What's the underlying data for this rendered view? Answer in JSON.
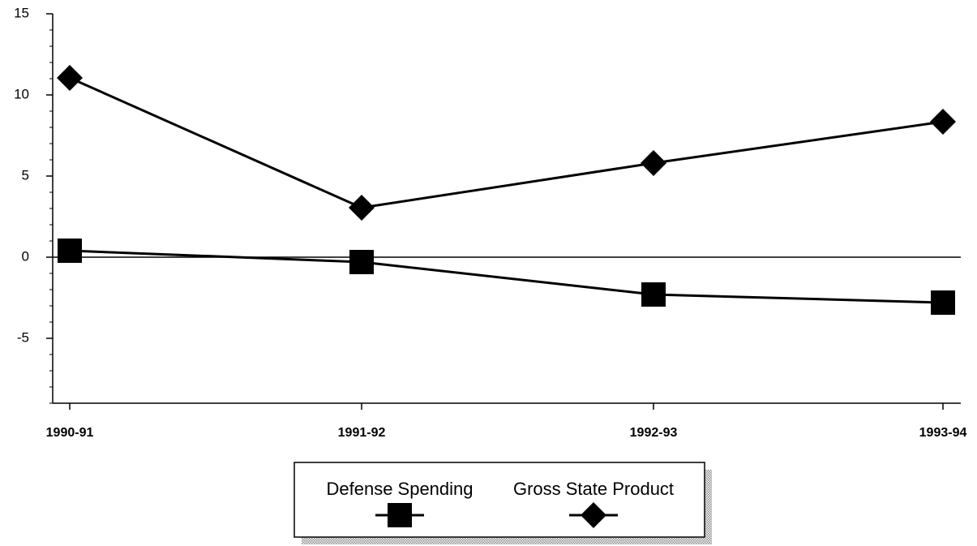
{
  "chart_data": {
    "type": "line",
    "categories": [
      "1990-91",
      "1991-92",
      "1992-93",
      "1993-94"
    ],
    "series": [
      {
        "name": "Defense Spending",
        "color": "#000000",
        "marker": "square",
        "values": [
          0.4,
          -0.3,
          -2.3,
          -2.8
        ]
      },
      {
        "name": "Gross State Product",
        "color": "#000000",
        "marker": "diamond",
        "values": [
          11.05,
          3.05,
          5.8,
          8.35
        ]
      }
    ],
    "ylim": [
      -9,
      15
    ],
    "yticks": [
      -5,
      0,
      5,
      10,
      15
    ],
    "minor_yticks": [
      -9,
      -8,
      -7,
      -6,
      -4,
      -3,
      -2,
      -1,
      1,
      2,
      3,
      4,
      6,
      7,
      8,
      9,
      11,
      12,
      13,
      14
    ],
    "legend": "bottom"
  }
}
